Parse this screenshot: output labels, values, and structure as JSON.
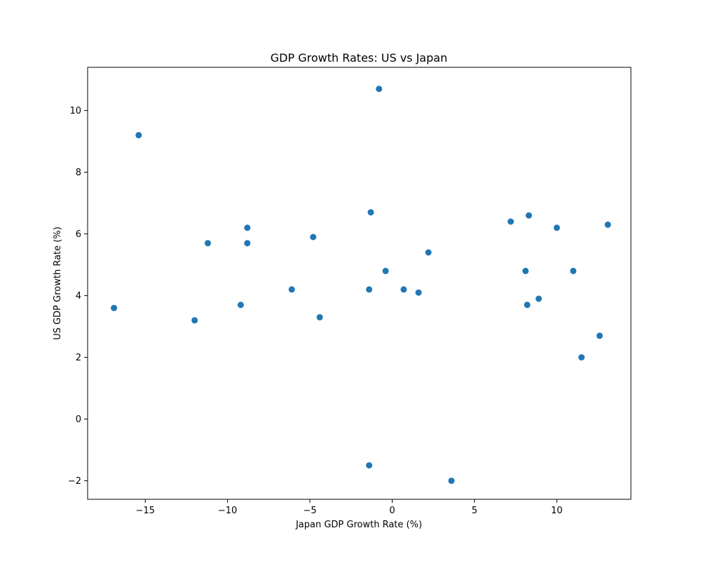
{
  "chart_data": {
    "type": "scatter",
    "title": "GDP Growth Rates: US vs Japan",
    "xlabel": "Japan GDP Growth Rate (%)",
    "ylabel": "US GDP Growth Rate (%)",
    "xlim": [
      -18.5,
      14.5
    ],
    "ylim": [
      -2.6,
      11.4
    ],
    "xticks": [
      -15,
      -10,
      -5,
      0,
      5,
      10
    ],
    "xtick_labels": [
      "−15",
      "−10",
      "−5",
      "0",
      "5",
      "10"
    ],
    "yticks": [
      -2,
      0,
      2,
      4,
      6,
      8,
      10
    ],
    "ytick_labels": [
      "−2",
      "0",
      "2",
      "4",
      "6",
      "8",
      "10"
    ],
    "grid": false,
    "marker_color": "#1f77b4",
    "series": [
      {
        "points": [
          [
            -16.9,
            3.6
          ],
          [
            -15.4,
            9.2
          ],
          [
            -12.0,
            3.2
          ],
          [
            -11.2,
            5.7
          ],
          [
            -9.2,
            3.7
          ],
          [
            -8.8,
            6.2
          ],
          [
            -8.8,
            5.7
          ],
          [
            -6.1,
            4.2
          ],
          [
            -4.8,
            5.9
          ],
          [
            -4.4,
            3.3
          ],
          [
            -1.4,
            4.2
          ],
          [
            -1.3,
            6.7
          ],
          [
            -1.4,
            -1.5
          ],
          [
            -0.8,
            10.7
          ],
          [
            -0.4,
            4.8
          ],
          [
            0.7,
            4.2
          ],
          [
            1.6,
            4.1
          ],
          [
            2.2,
            5.4
          ],
          [
            3.6,
            -2.0
          ],
          [
            7.2,
            6.4
          ],
          [
            8.1,
            4.8
          ],
          [
            8.3,
            6.6
          ],
          [
            8.2,
            3.7
          ],
          [
            8.9,
            3.9
          ],
          [
            10.0,
            6.2
          ],
          [
            11.0,
            4.8
          ],
          [
            11.5,
            2.0
          ],
          [
            12.6,
            2.7
          ],
          [
            13.1,
            6.3
          ]
        ]
      }
    ]
  }
}
